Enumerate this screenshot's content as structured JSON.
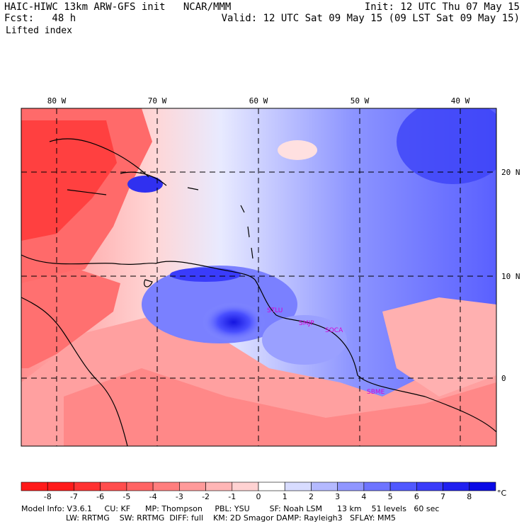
{
  "header": {
    "model_line": "HAIC-HIWC 13km ARW-GFS init   NCAR/MMM",
    "fcst_line": "Fcst:   48 h",
    "init_line": "Init: 12 UTC Thu 07 May 15",
    "valid_line": "Valid: 12 UTC Sat 09 May 15 (09 LST Sat 09 May 15)",
    "field_name": "Lifted index"
  },
  "map": {
    "lon_labels": [
      "80 W",
      "70 W",
      "60 W",
      "50 W",
      "40 W"
    ],
    "lat_labels": [
      "20 N",
      "10 N",
      "0"
    ],
    "stations": [
      "STLU",
      "SMJP",
      "SOCA",
      "SBME"
    ],
    "station_color": "#d400d4"
  },
  "colorbar": {
    "labels": [
      "-8",
      "-7",
      "-6",
      "-5",
      "-4",
      "-3",
      "-2",
      "-1",
      "0",
      "1",
      "2",
      "3",
      "4",
      "5",
      "6",
      "7",
      "8"
    ],
    "unit": "°C",
    "colors": [
      "#ff1a1a",
      "#ff3232",
      "#ff4d4d",
      "#ff6464",
      "#ff7e7e",
      "#ff9a9a",
      "#ffb6b6",
      "#ffd2d2",
      "#ffffff",
      "#d8dcff",
      "#b4b9ff",
      "#9096ff",
      "#6e74ff",
      "#5058ff",
      "#3a3cfa",
      "#2020f0",
      "#0a0ae6"
    ]
  },
  "footer": {
    "line1": "Model Info: V3.6.1     CU: KF      MP: Thompson     PBL: YSU        SF: Noah LSM      13 km    51 levels   60 sec",
    "line2": "                  LW: RRTMG    SW: RRTMG  DIFF: full    KM: 2D Smagor DAMP: Rayleigh3   SFLAY: MM5"
  }
}
